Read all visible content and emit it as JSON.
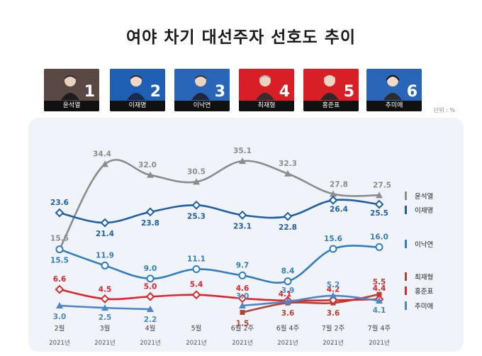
{
  "title": "여야 차기 대선주자 선호도 추이",
  "unit_label": "단위 : %",
  "candidates": [
    {
      "rank": "1",
      "name": "윤석열",
      "color": "#5a4844"
    },
    {
      "rank": "2",
      "name": "이재명",
      "color": "#1f5fb4"
    },
    {
      "rank": "3",
      "name": "이낙연",
      "color": "#2a66b8"
    },
    {
      "rank": "4",
      "name": "최재형",
      "color": "#d81f26"
    },
    {
      "rank": "5",
      "name": "홍준표",
      "color": "#d81f26"
    },
    {
      "rank": "6",
      "name": "추미애",
      "color": "#2a66b8"
    }
  ],
  "chart_data": {
    "type": "line",
    "x": [
      "2월",
      "3월",
      "4월",
      "5월",
      "6월 2주",
      "6월 4주",
      "7월 2주",
      "7월 4주"
    ],
    "x_sublabels": [
      "2021년",
      "2021년",
      "2021년",
      "2021년",
      "2021년",
      "2021년",
      "2021년",
      "2021년"
    ],
    "ylim": [
      0,
      40
    ],
    "series": [
      {
        "name": "윤석열",
        "color": "#8c8c8c",
        "marker": "triangle",
        "values": [
          15.5,
          34.4,
          32.0,
          30.5,
          35.1,
          32.3,
          27.8,
          27.5
        ],
        "labels": [
          "15.5",
          "34.4",
          "32.0",
          "30.5",
          "35.1",
          "32.3",
          "27.8",
          "27.5"
        ]
      },
      {
        "name": "이재명",
        "color": "#1f5fa8",
        "marker": "diamond",
        "values": [
          23.6,
          21.4,
          23.8,
          25.3,
          23.1,
          22.8,
          26.4,
          25.5
        ],
        "labels": [
          "23.6",
          "21.4",
          "23.8",
          "25.3",
          "23.1",
          "22.8",
          "26.4",
          "25.5"
        ]
      },
      {
        "name": "이낙연",
        "color": "#2f7ec4",
        "marker": "circle",
        "values": [
          15.5,
          11.9,
          9.0,
          11.1,
          9.7,
          8.4,
          15.6,
          16.0
        ],
        "labels": [
          "15.5",
          "11.9",
          "9.0",
          "11.1",
          "9.7",
          "8.4",
          "15.6",
          "16.0"
        ]
      },
      {
        "name": "최재형",
        "color": "#b4432f",
        "marker": "square",
        "values": [
          null,
          null,
          null,
          null,
          1.5,
          3.6,
          3.6,
          5.5
        ],
        "labels": [
          "",
          "",
          "",
          "",
          "1.5",
          "3.6",
          "3.6",
          "5.5"
        ]
      },
      {
        "name": "홍준표",
        "color": "#e0262a",
        "marker": "diamond",
        "values": [
          6.6,
          4.5,
          5.0,
          5.4,
          4.6,
          4.1,
          4.2,
          4.4
        ],
        "labels": [
          "6.6",
          "4.5",
          "5.0",
          "5.4",
          "4.6",
          "4.1",
          "4.2",
          "4.4"
        ]
      },
      {
        "name": "추미애",
        "color": "#4a86c8",
        "marker": "triangle",
        "values": [
          3.0,
          2.5,
          2.2,
          null,
          3.0,
          3.9,
          5.2,
          4.1
        ],
        "labels": [
          "3.0",
          "2.5",
          "2.2",
          "",
          "3.0",
          "3.9",
          "5.2",
          "4.1"
        ]
      }
    ]
  }
}
